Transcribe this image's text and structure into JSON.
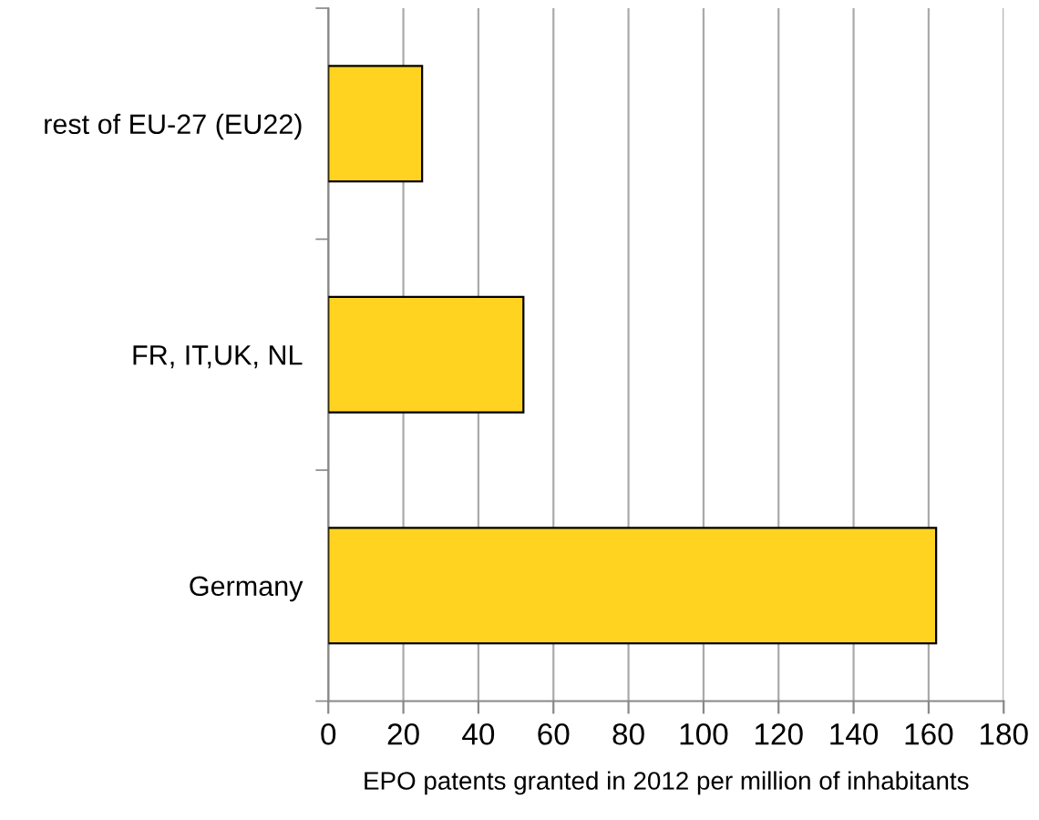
{
  "chart_data": {
    "type": "bar",
    "orientation": "horizontal",
    "categories": [
      "rest of EU-27 (EU22)",
      "FR, IT,UK, NL",
      "Germany"
    ],
    "values": [
      25,
      52,
      162
    ],
    "color": "#ffd320",
    "xlim": [
      0,
      180
    ],
    "xticks": [
      0,
      20,
      40,
      60,
      80,
      100,
      120,
      140,
      160,
      180
    ],
    "xlabel": "EPO patents granted in 2012 per million of inhabitants",
    "grid": "x",
    "legend": false
  }
}
